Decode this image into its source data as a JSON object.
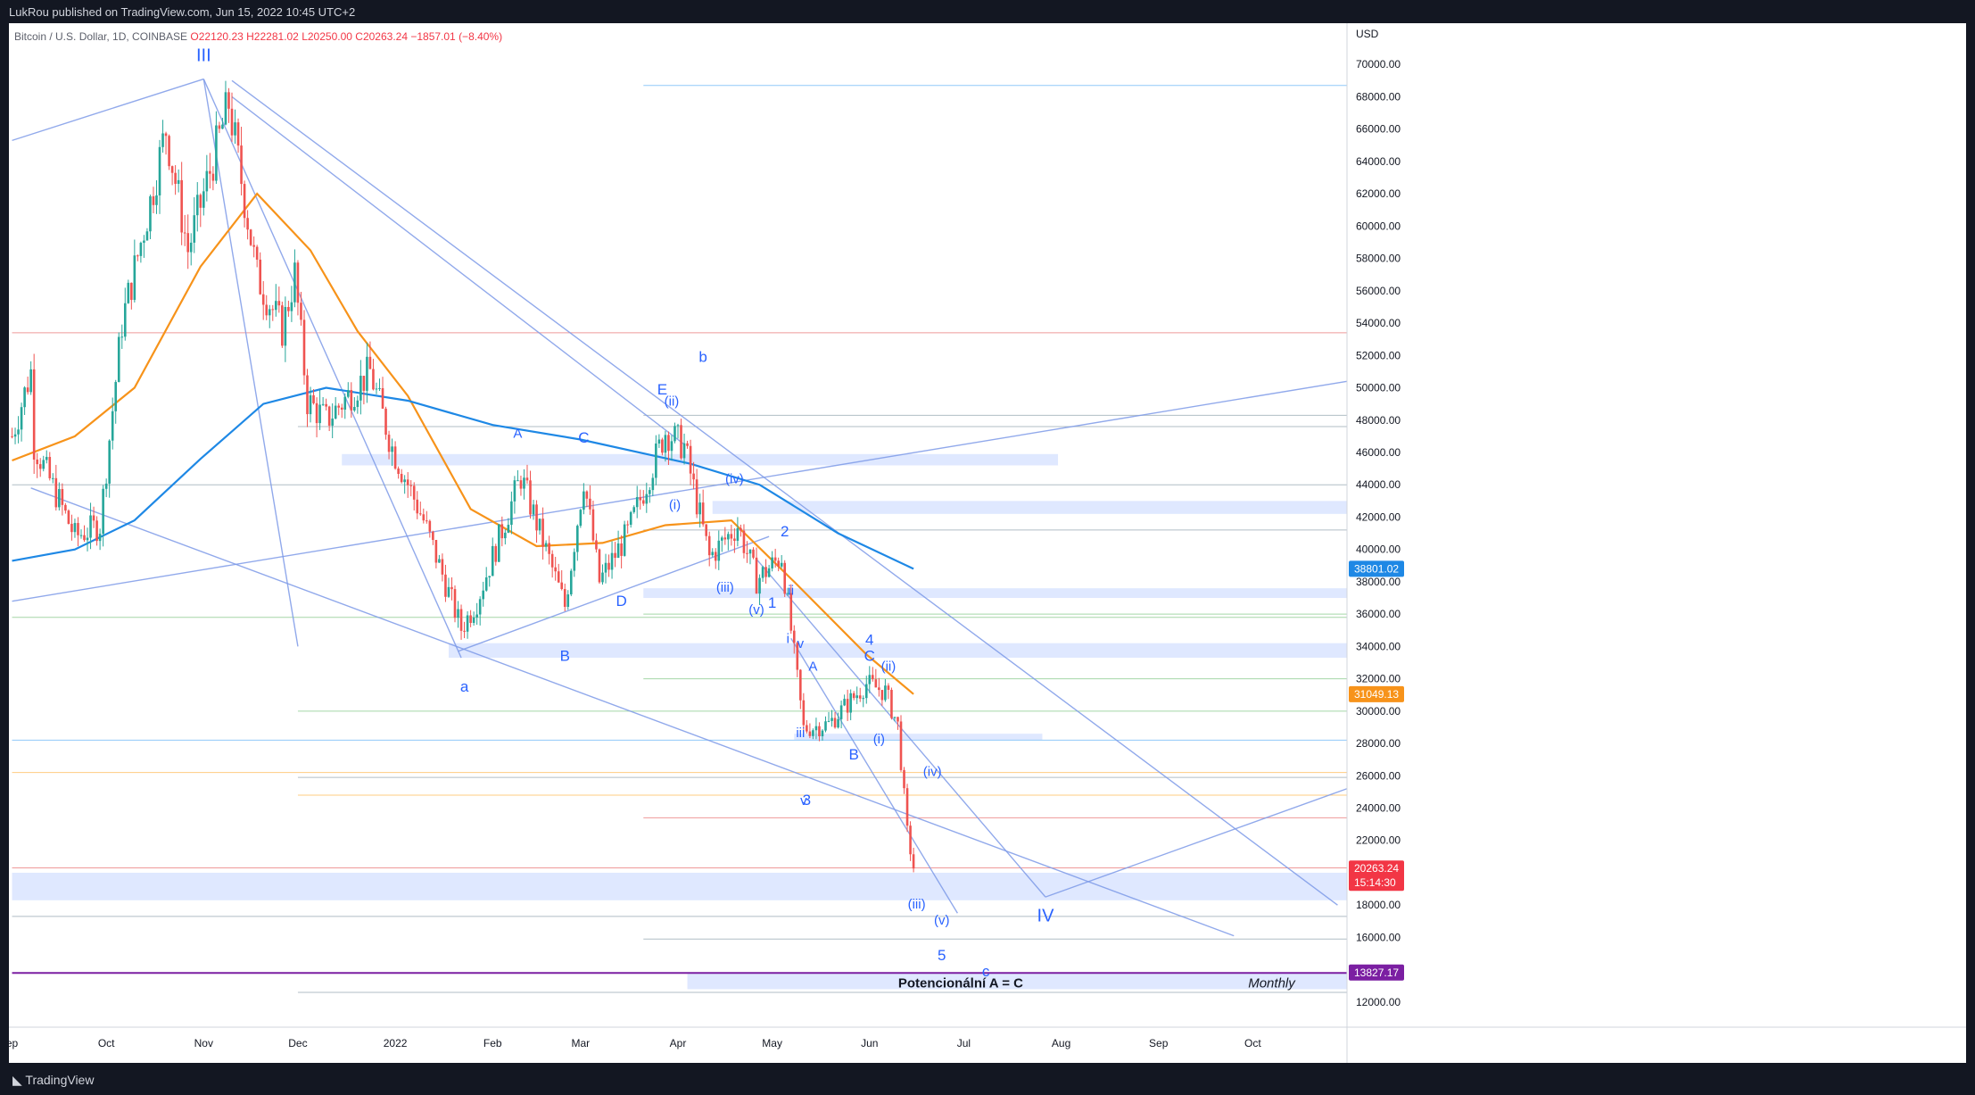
{
  "header": {
    "published": "LukRou published on TradingView.com, Jun 15, 2022 10:45 UTC+2"
  },
  "symbol": {
    "name": "Bitcoin / U.S. Dollar, 1D, COINBASE",
    "open": "O22120.23",
    "high": "H22281.02",
    "low": "L20250.00",
    "close": "C20263.24",
    "change": "−1857.01 (−8.40%)"
  },
  "footer": {
    "logo": "TradingView"
  },
  "colors": {
    "up": "#26a69a",
    "down": "#ef5350",
    "ma_fast": "#f7931a",
    "ma_slow": "#1e88e5",
    "annotation": "#2962ff",
    "zone": "#dbe5ff"
  },
  "chart_data": {
    "type": "candlestick",
    "currency": "USD",
    "ylim": [
      11000,
      72000
    ],
    "y_ticks": [
      12000,
      16000,
      18000,
      20000,
      22000,
      24000,
      26000,
      28000,
      30000,
      32000,
      34000,
      36000,
      38000,
      40000,
      42000,
      44000,
      46000,
      48000,
      50000,
      52000,
      54000,
      56000,
      58000,
      60000,
      62000,
      64000,
      66000,
      68000,
      70000
    ],
    "x_ticks": [
      {
        "label": "ep",
        "x": "2021-09-01"
      },
      {
        "label": "Oct",
        "x": "2021-10-01"
      },
      {
        "label": "Nov",
        "x": "2021-11-01"
      },
      {
        "label": "Dec",
        "x": "2021-12-01"
      },
      {
        "label": "2022",
        "x": "2022-01-01"
      },
      {
        "label": "Feb",
        "x": "2022-02-01"
      },
      {
        "label": "Mar",
        "x": "2022-03-01"
      },
      {
        "label": "Apr",
        "x": "2022-04-01"
      },
      {
        "label": "May",
        "x": "2022-05-01"
      },
      {
        "label": "Jun",
        "x": "2022-06-01"
      },
      {
        "label": "Jul",
        "x": "2022-07-01"
      },
      {
        "label": "Aug",
        "x": "2022-08-01"
      },
      {
        "label": "Sep",
        "x": "2022-09-01"
      },
      {
        "label": "Oct",
        "x": "2022-10-01"
      }
    ],
    "price_path": [
      [
        "2021-09-01",
        47000
      ],
      [
        "2021-09-07",
        51000
      ],
      [
        "2021-09-08",
        46500
      ],
      [
        "2021-09-21",
        40800
      ],
      [
        "2021-09-29",
        41500
      ],
      [
        "2021-10-06",
        54000
      ],
      [
        "2021-10-15",
        61500
      ],
      [
        "2021-10-20",
        66000
      ],
      [
        "2021-10-27",
        58500
      ],
      [
        "2021-10-31",
        61300
      ],
      [
        "2021-11-09",
        67600
      ],
      [
        "2021-11-18",
        56900
      ],
      [
        "2021-11-26",
        53600
      ],
      [
        "2021-11-30",
        57000
      ],
      [
        "2021-12-04",
        49200
      ],
      [
        "2021-12-10",
        48000
      ],
      [
        "2021-12-24",
        51000
      ],
      [
        "2021-12-31",
        46300
      ],
      [
        "2022-01-10",
        41800
      ],
      [
        "2022-01-22",
        35100
      ],
      [
        "2022-01-27",
        36800
      ],
      [
        "2022-02-10",
        44500
      ],
      [
        "2022-02-24",
        36500
      ],
      [
        "2022-03-02",
        44400
      ],
      [
        "2022-03-07",
        38000
      ],
      [
        "2022-03-16",
        41000
      ],
      [
        "2022-03-28",
        47300
      ],
      [
        "2022-04-03",
        46400
      ],
      [
        "2022-04-11",
        39500
      ],
      [
        "2022-04-20",
        41500
      ],
      [
        "2022-04-26",
        38100
      ],
      [
        "2022-05-04",
        39600
      ],
      [
        "2022-05-11",
        28900
      ],
      [
        "2022-05-19",
        29200
      ],
      [
        "2022-05-31",
        31700
      ],
      [
        "2022-06-06",
        31200
      ],
      [
        "2022-06-10",
        29100
      ],
      [
        "2022-06-13",
        22500
      ],
      [
        "2022-06-15",
        20263
      ]
    ],
    "last_close": 20263.24,
    "series": [
      {
        "name": "MA fast",
        "color": "#f7931a",
        "last": 31049.13,
        "points": [
          [
            "2021-09-01",
            45500
          ],
          [
            "2021-09-21",
            47000
          ],
          [
            "2021-10-10",
            50000
          ],
          [
            "2021-10-31",
            57500
          ],
          [
            "2021-11-18",
            62000
          ],
          [
            "2021-12-05",
            58500
          ],
          [
            "2021-12-20",
            53500
          ],
          [
            "2022-01-05",
            49500
          ],
          [
            "2022-01-25",
            42500
          ],
          [
            "2022-02-15",
            40200
          ],
          [
            "2022-03-08",
            40400
          ],
          [
            "2022-03-28",
            41500
          ],
          [
            "2022-04-18",
            41800
          ],
          [
            "2022-05-08",
            38000
          ],
          [
            "2022-05-31",
            33500
          ],
          [
            "2022-06-15",
            31049
          ]
        ]
      },
      {
        "name": "MA slow",
        "color": "#1e88e5",
        "last": 38801.02,
        "points": [
          [
            "2021-09-01",
            39300
          ],
          [
            "2021-09-21",
            40000
          ],
          [
            "2021-10-10",
            41800
          ],
          [
            "2021-10-31",
            45600
          ],
          [
            "2021-11-20",
            49000
          ],
          [
            "2021-12-10",
            50000
          ],
          [
            "2022-01-05",
            49200
          ],
          [
            "2022-02-01",
            47700
          ],
          [
            "2022-03-01",
            46800
          ],
          [
            "2022-04-05",
            45300
          ],
          [
            "2022-04-27",
            44000
          ],
          [
            "2022-05-22",
            41000
          ],
          [
            "2022-06-15",
            38801
          ]
        ]
      }
    ],
    "price_labels": [
      {
        "price": 38801.02,
        "label": "38801.02",
        "color": "#1e88e5"
      },
      {
        "price": 31049.13,
        "label": "31049.13",
        "color": "#f7931a"
      },
      {
        "price": 20263.24,
        "label": "20263.24",
        "sub": "15:14:30",
        "color": "#f23645"
      },
      {
        "price": 13827.17,
        "label": "13827.17",
        "color": "#7b1fa2"
      }
    ],
    "horizontal_lines": [
      {
        "price": 68700,
        "from": "2022-03-21",
        "color": "#90caf9"
      },
      {
        "price": 53400,
        "from": "2021-09-01",
        "color": "#ef9a9a"
      },
      {
        "price": 48300,
        "from": "2022-03-21",
        "color": "#b0bec5"
      },
      {
        "price": 47600,
        "from": "2021-12-01",
        "color": "#b0bec5"
      },
      {
        "price": 44000,
        "from": "2021-09-01",
        "color": "#b0bec5"
      },
      {
        "price": 41200,
        "from": "2022-03-21",
        "color": "#b0bec5"
      },
      {
        "price": 36000,
        "from": "2022-03-21",
        "color": "#a5d6a7"
      },
      {
        "price": 35800,
        "from": "2021-09-01",
        "color": "#a5d6a7"
      },
      {
        "price": 32000,
        "from": "2022-03-21",
        "color": "#a5d6a7"
      },
      {
        "price": 30000,
        "from": "2021-12-01",
        "color": "#a5d6a7"
      },
      {
        "price": 28200,
        "from": "2021-09-01",
        "color": "#90caf9"
      },
      {
        "price": 26200,
        "from": "2021-09-01",
        "color": "#ffcc80"
      },
      {
        "price": 25900,
        "from": "2021-12-01",
        "color": "#b0bec5"
      },
      {
        "price": 24800,
        "from": "2021-12-01",
        "color": "#ffcc80"
      },
      {
        "price": 23400,
        "from": "2022-03-21",
        "color": "#ef9a9a"
      },
      {
        "price": 20300,
        "from": "2021-09-01",
        "color": "#ef9a9a"
      },
      {
        "price": 17300,
        "from": "2021-09-01",
        "color": "#b0bec5"
      },
      {
        "price": 15900,
        "from": "2022-03-21",
        "color": "#b0bec5"
      },
      {
        "price": 13800,
        "from": "2021-09-01",
        "color": "#7b1fa2"
      },
      {
        "price": 12600,
        "from": "2021-12-01",
        "color": "#b0bec5"
      }
    ],
    "zones": [
      {
        "from": "2021-12-15",
        "to": "2022-07-31",
        "top": 45900,
        "bottom": 45200
      },
      {
        "from": "2022-04-12",
        "to": "2022-10-31",
        "top": 43000,
        "bottom": 42200
      },
      {
        "from": "2022-03-21",
        "to": "2022-10-31",
        "top": 37600,
        "bottom": 37000
      },
      {
        "from": "2022-01-18",
        "to": "2022-10-31",
        "top": 34200,
        "bottom": 33300
      },
      {
        "from": "2022-05-08",
        "to": "2022-07-26",
        "top": 28600,
        "bottom": 28200
      },
      {
        "from": "2021-09-01",
        "to": "2022-10-31",
        "top": 20000,
        "bottom": 18300
      },
      {
        "from": "2022-04-04",
        "to": "2022-10-31",
        "top": 13800,
        "bottom": 12800
      }
    ],
    "trend_lines": [
      [
        [
          "2021-09-01",
          65300
        ],
        [
          "2021-11-01",
          69100
        ]
      ],
      [
        [
          "2021-11-01",
          69100
        ],
        [
          "2022-01-22",
          33300
        ]
      ],
      [
        [
          "2021-11-10",
          69000
        ],
        [
          "2022-10-28",
          18000
        ]
      ],
      [
        [
          "2021-11-10",
          68000
        ],
        [
          "2022-04-03",
          46500
        ]
      ],
      [
        [
          "2021-09-07",
          43800
        ],
        [
          "2022-09-25",
          16100
        ]
      ],
      [
        [
          "2022-01-21",
          33700
        ],
        [
          "2022-04-30",
          40800
        ]
      ],
      [
        [
          "2021-09-01",
          36800
        ],
        [
          "2022-10-31",
          50400
        ]
      ],
      [
        [
          "2021-11-01",
          69100
        ],
        [
          "2021-12-01",
          34000
        ]
      ],
      [
        [
          "2022-07-27",
          18500
        ],
        [
          "2022-10-31",
          25200
        ]
      ],
      [
        [
          "2022-04-26",
          39400
        ],
        [
          "2022-07-27",
          18500
        ]
      ],
      [
        [
          "2022-05-07",
          34500
        ],
        [
          "2022-06-29",
          17500
        ]
      ]
    ],
    "annotations": [
      {
        "text": "III",
        "x": "2021-11-01",
        "y": 70200,
        "size": "lg"
      },
      {
        "text": "a",
        "x": "2022-01-23",
        "y": 31200
      },
      {
        "text": "A",
        "x": "2022-02-09",
        "y": 46900,
        "size": "sm"
      },
      {
        "text": "B",
        "x": "2022-02-24",
        "y": 33100
      },
      {
        "text": "C",
        "x": "2022-03-02",
        "y": 46600
      },
      {
        "text": "D",
        "x": "2022-03-14",
        "y": 36500
      },
      {
        "text": "E",
        "x": "2022-03-27",
        "y": 49600
      },
      {
        "text": "b",
        "x": "2022-04-09",
        "y": 51600
      },
      {
        "text": "(ii)",
        "x": "2022-03-30",
        "y": 48900,
        "size": "sm"
      },
      {
        "text": "(i)",
        "x": "2022-03-31",
        "y": 42500,
        "size": "sm"
      },
      {
        "text": "(iv)",
        "x": "2022-04-19",
        "y": 44100,
        "size": "sm"
      },
      {
        "text": "(iii)",
        "x": "2022-04-16",
        "y": 37400,
        "size": "sm"
      },
      {
        "text": "(v)",
        "x": "2022-04-26",
        "y": 36000,
        "size": "sm"
      },
      {
        "text": "2",
        "x": "2022-05-05",
        "y": 40800
      },
      {
        "text": "1",
        "x": "2022-05-01",
        "y": 36400
      },
      {
        "text": "ii",
        "x": "2022-05-07",
        "y": 37200,
        "size": "sm"
      },
      {
        "text": "i",
        "x": "2022-05-06",
        "y": 34200,
        "size": "sm"
      },
      {
        "text": "v",
        "x": "2022-05-10",
        "y": 33900,
        "size": "sm"
      },
      {
        "text": "A",
        "x": "2022-05-14",
        "y": 32500,
        "size": "sm"
      },
      {
        "text": "iii",
        "x": "2022-05-10",
        "y": 28400,
        "size": "sm"
      },
      {
        "text": "4",
        "x": "2022-06-01",
        "y": 34100
      },
      {
        "text": "C",
        "x": "2022-06-01",
        "y": 33100
      },
      {
        "text": "(ii)",
        "x": "2022-06-07",
        "y": 32500,
        "size": "sm"
      },
      {
        "text": "(i)",
        "x": "2022-06-04",
        "y": 28000,
        "size": "sm"
      },
      {
        "text": "B",
        "x": "2022-05-27",
        "y": 27000
      },
      {
        "text": "v",
        "x": "2022-05-11",
        "y": 24200,
        "size": "sm"
      },
      {
        "text": "3",
        "x": "2022-05-12",
        "y": 24200
      },
      {
        "text": "(iv)",
        "x": "2022-06-21",
        "y": 26000,
        "size": "sm"
      },
      {
        "text": "(iii)",
        "x": "2022-06-16",
        "y": 17800,
        "size": "sm"
      },
      {
        "text": "(v)",
        "x": "2022-06-24",
        "y": 16800,
        "size": "sm"
      },
      {
        "text": "5",
        "x": "2022-06-24",
        "y": 14600
      },
      {
        "text": "c",
        "x": "2022-07-08",
        "y": 13600
      },
      {
        "text": "IV",
        "x": "2022-07-27",
        "y": 17000,
        "size": "lg"
      }
    ],
    "notes": [
      {
        "text": "Potencionální A = C",
        "x": "2022-06-30",
        "y": 12900
      },
      {
        "text": "Monthly",
        "x": "2022-10-07",
        "y": 12900
      }
    ]
  }
}
